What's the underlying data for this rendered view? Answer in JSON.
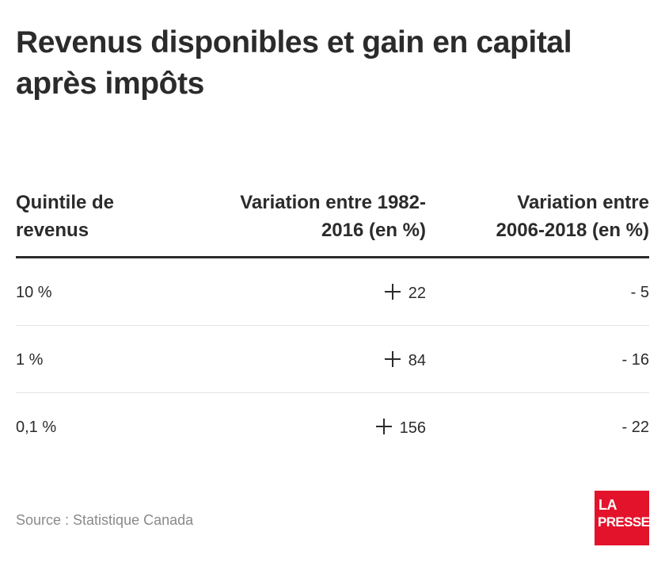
{
  "chart_data": {
    "type": "table",
    "title": "Revenus disponibles et gain en capital après impôts",
    "columns": [
      "Quintile de revenus",
      "Variation entre 1982-2016 (en %)",
      "Variation entre 2006-2018 (en %)"
    ],
    "rows": [
      {
        "quintile": "10 %",
        "variation_1982_2016": "22",
        "variation_2006_2018": "- 5"
      },
      {
        "quintile": "1 %",
        "variation_1982_2016": "84",
        "variation_2006_2018": "- 16"
      },
      {
        "quintile": "0,1 %",
        "variation_1982_2016": "156",
        "variation_2006_2018": "- 22"
      }
    ],
    "source": "Source : Statistique Canada"
  },
  "logo": {
    "line1": "LA",
    "line2": "PRESSE",
    "color": "#e3132b"
  }
}
